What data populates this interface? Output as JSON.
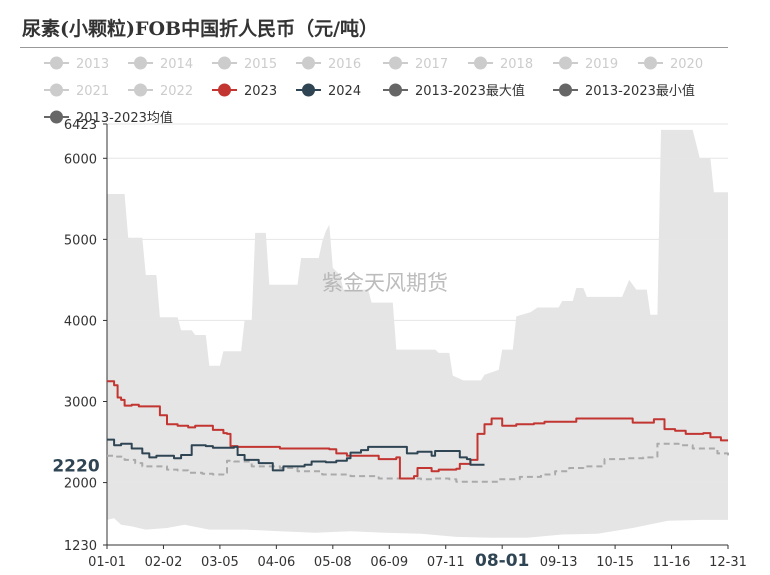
{
  "title": "尿素(小颗粒)FOB中国折人民币（元/吨）",
  "watermark": "紫金天风期货",
  "chart_data": {
    "type": "line",
    "xlabel": "",
    "ylabel": "",
    "x_tick_labels": [
      "01-01",
      "02-02",
      "03-05",
      "04-06",
      "05-08",
      "06-09",
      "07-11",
      "08-01",
      "09-13",
      "10-15",
      "11-16",
      "12-31"
    ],
    "highlighted_x_label": "08-01",
    "x_range": [
      1,
      365
    ],
    "ylim": [
      1230,
      6423
    ],
    "y_ticks": [
      1230,
      2000,
      3000,
      4000,
      5000,
      6000,
      6423
    ],
    "hover_value_label": "2220",
    "legend": [
      {
        "name": "2013",
        "color": "#cccccc",
        "active": false
      },
      {
        "name": "2014",
        "color": "#cccccc",
        "active": false
      },
      {
        "name": "2015",
        "color": "#cccccc",
        "active": false
      },
      {
        "name": "2016",
        "color": "#cccccc",
        "active": false
      },
      {
        "name": "2017",
        "color": "#cccccc",
        "active": false
      },
      {
        "name": "2018",
        "color": "#cccccc",
        "active": false
      },
      {
        "name": "2019",
        "color": "#cccccc",
        "active": false
      },
      {
        "name": "2020",
        "color": "#cccccc",
        "active": false
      },
      {
        "name": "2021",
        "color": "#cccccc",
        "active": false
      },
      {
        "name": "2022",
        "color": "#cccccc",
        "active": false
      },
      {
        "name": "2023",
        "color": "#c23531",
        "active": true
      },
      {
        "name": "2024",
        "color": "#2f4554",
        "active": true
      },
      {
        "name": "2013-2023最大值",
        "color": "#666666",
        "active": true
      },
      {
        "name": "2013-2023最小值",
        "color": "#666666",
        "active": true
      },
      {
        "name": "2013-2023均值",
        "color": "#666666",
        "active": true
      }
    ],
    "band": {
      "fill": "#e5e5e5",
      "max": [
        [
          1,
          5560
        ],
        [
          6,
          5560
        ],
        [
          7,
          5020
        ],
        [
          11,
          5020
        ],
        [
          12,
          4560
        ],
        [
          15,
          4560
        ],
        [
          16,
          4040
        ],
        [
          21,
          4040
        ],
        [
          22,
          3880
        ],
        [
          25,
          3880
        ],
        [
          26,
          3820
        ],
        [
          29,
          3820
        ],
        [
          30,
          3440
        ],
        [
          33,
          3440
        ],
        [
          34,
          3620
        ],
        [
          39,
          3620
        ],
        [
          40,
          4000
        ],
        [
          42,
          4000
        ],
        [
          43,
          5080
        ],
        [
          46,
          5080
        ],
        [
          47,
          4440
        ],
        [
          55,
          4440
        ],
        [
          56,
          4770
        ],
        [
          61,
          4770
        ],
        [
          62,
          4970
        ],
        [
          63,
          5100
        ],
        [
          64,
          5180
        ],
        [
          65,
          4650
        ],
        [
          67,
          4560
        ],
        [
          68,
          4380
        ],
        [
          75,
          4380
        ],
        [
          76,
          4220
        ],
        [
          82,
          4220
        ],
        [
          83,
          3640
        ],
        [
          94,
          3640
        ],
        [
          95,
          3600
        ],
        [
          98,
          3600
        ],
        [
          99,
          3320
        ],
        [
          102,
          3260
        ],
        [
          107,
          3260
        ],
        [
          108,
          3330
        ],
        [
          112,
          3390
        ],
        [
          113,
          3640
        ],
        [
          116,
          3640
        ],
        [
          117,
          4050
        ],
        [
          121,
          4100
        ],
        [
          123,
          4160
        ],
        [
          129,
          4160
        ],
        [
          130,
          4240
        ],
        [
          133,
          4240
        ],
        [
          134,
          4400
        ],
        [
          136,
          4400
        ],
        [
          137,
          4290
        ],
        [
          147,
          4290
        ],
        [
          149,
          4500
        ],
        [
          151,
          4380
        ],
        [
          154,
          4380
        ],
        [
          155,
          4070
        ],
        [
          157,
          4070
        ],
        [
          158,
          6350
        ],
        [
          167,
          6350
        ],
        [
          169,
          6000
        ],
        [
          172,
          6000
        ],
        [
          173,
          5580
        ],
        [
          177,
          5580
        ]
      ],
      "min": [
        [
          1,
          1540
        ],
        [
          3,
          1560
        ],
        [
          5,
          1480
        ],
        [
          8,
          1460
        ],
        [
          12,
          1420
        ],
        [
          18,
          1440
        ],
        [
          23,
          1480
        ],
        [
          30,
          1420
        ],
        [
          40,
          1420
        ],
        [
          50,
          1400
        ],
        [
          60,
          1380
        ],
        [
          70,
          1400
        ],
        [
          80,
          1380
        ],
        [
          90,
          1370
        ],
        [
          100,
          1330
        ],
        [
          110,
          1320
        ],
        [
          120,
          1320
        ],
        [
          130,
          1360
        ],
        [
          140,
          1370
        ],
        [
          150,
          1440
        ],
        [
          160,
          1530
        ],
        [
          170,
          1540
        ],
        [
          177,
          1540
        ]
      ]
    },
    "series": [
      {
        "name": "2013-2023均值",
        "color": "#aaaaaa",
        "dashed": true,
        "points": [
          [
            1,
            2330
          ],
          [
            3,
            2320
          ],
          [
            6,
            2280
          ],
          [
            9,
            2240
          ],
          [
            11,
            2200
          ],
          [
            17,
            2200
          ],
          [
            18,
            2160
          ],
          [
            21,
            2150
          ],
          [
            24,
            2120
          ],
          [
            28,
            2110
          ],
          [
            31,
            2100
          ],
          [
            34,
            2120
          ],
          [
            35,
            2270
          ],
          [
            37,
            2260
          ],
          [
            42,
            2200
          ],
          [
            50,
            2180
          ],
          [
            55,
            2140
          ],
          [
            62,
            2100
          ],
          [
            70,
            2080
          ],
          [
            78,
            2050
          ],
          [
            86,
            2050
          ],
          [
            90,
            2040
          ],
          [
            94,
            2050
          ],
          [
            98,
            2040
          ],
          [
            100,
            2010
          ],
          [
            106,
            2010
          ],
          [
            112,
            2040
          ],
          [
            118,
            2070
          ],
          [
            124,
            2100
          ],
          [
            128,
            2140
          ],
          [
            132,
            2180
          ],
          [
            136,
            2200
          ],
          [
            142,
            2290
          ],
          [
            148,
            2300
          ],
          [
            153,
            2310
          ],
          [
            155,
            2310
          ],
          [
            157,
            2480
          ],
          [
            163,
            2460
          ],
          [
            167,
            2420
          ],
          [
            171,
            2420
          ],
          [
            174,
            2360
          ],
          [
            177,
            2330
          ]
        ]
      },
      {
        "name": "2023",
        "color": "#c23531",
        "dashed": false,
        "points": [
          [
            1,
            3250
          ],
          [
            3,
            3200
          ],
          [
            4,
            3050
          ],
          [
            5,
            3020
          ],
          [
            6,
            2950
          ],
          [
            8,
            2960
          ],
          [
            10,
            2940
          ],
          [
            15,
            2940
          ],
          [
            16,
            2830
          ],
          [
            18,
            2720
          ],
          [
            21,
            2700
          ],
          [
            24,
            2680
          ],
          [
            26,
            2700
          ],
          [
            31,
            2650
          ],
          [
            34,
            2610
          ],
          [
            35,
            2600
          ],
          [
            36,
            2450
          ],
          [
            38,
            2440
          ],
          [
            50,
            2420
          ],
          [
            58,
            2420
          ],
          [
            64,
            2410
          ],
          [
            66,
            2360
          ],
          [
            69,
            2330
          ],
          [
            76,
            2330
          ],
          [
            78,
            2290
          ],
          [
            83,
            2310
          ],
          [
            84,
            2050
          ],
          [
            88,
            2080
          ],
          [
            89,
            2180
          ],
          [
            93,
            2140
          ],
          [
            95,
            2160
          ],
          [
            100,
            2170
          ],
          [
            101,
            2230
          ],
          [
            104,
            2280
          ],
          [
            106,
            2600
          ],
          [
            108,
            2720
          ],
          [
            110,
            2790
          ],
          [
            113,
            2700
          ],
          [
            117,
            2720
          ],
          [
            122,
            2730
          ],
          [
            125,
            2750
          ],
          [
            132,
            2750
          ],
          [
            134,
            2790
          ],
          [
            140,
            2790
          ],
          [
            148,
            2790
          ],
          [
            150,
            2740
          ],
          [
            154,
            2740
          ],
          [
            156,
            2780
          ],
          [
            158,
            2780
          ],
          [
            159,
            2660
          ],
          [
            162,
            2640
          ],
          [
            165,
            2600
          ],
          [
            170,
            2610
          ],
          [
            172,
            2560
          ],
          [
            173,
            2560
          ],
          [
            175,
            2520
          ],
          [
            177,
            2520
          ]
        ]
      },
      {
        "name": "2024",
        "color": "#2f4554",
        "dashed": false,
        "points": [
          [
            1,
            2530
          ],
          [
            3,
            2460
          ],
          [
            5,
            2480
          ],
          [
            7,
            2480
          ],
          [
            8,
            2420
          ],
          [
            11,
            2360
          ],
          [
            13,
            2310
          ],
          [
            15,
            2330
          ],
          [
            20,
            2300
          ],
          [
            22,
            2340
          ],
          [
            25,
            2460
          ],
          [
            29,
            2450
          ],
          [
            31,
            2430
          ],
          [
            37,
            2440
          ],
          [
            38,
            2340
          ],
          [
            40,
            2280
          ],
          [
            44,
            2240
          ],
          [
            46,
            2240
          ],
          [
            48,
            2150
          ],
          [
            51,
            2200
          ],
          [
            54,
            2200
          ],
          [
            57,
            2220
          ],
          [
            59,
            2260
          ],
          [
            63,
            2250
          ],
          [
            66,
            2270
          ],
          [
            69,
            2300
          ],
          [
            70,
            2370
          ],
          [
            72,
            2370
          ],
          [
            73,
            2400
          ],
          [
            75,
            2440
          ],
          [
            82,
            2440
          ],
          [
            86,
            2360
          ],
          [
            89,
            2380
          ],
          [
            93,
            2330
          ],
          [
            94,
            2390
          ],
          [
            99,
            2390
          ],
          [
            101,
            2310
          ],
          [
            103,
            2290
          ],
          [
            104,
            2220
          ],
          [
            108,
            2220
          ]
        ]
      }
    ]
  }
}
